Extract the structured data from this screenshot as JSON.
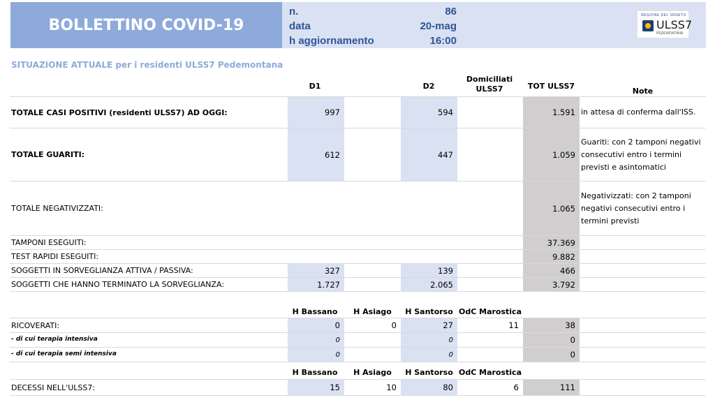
{
  "header": {
    "title": "BOLLETTINO COVID-19",
    "meta": [
      {
        "label": "n.",
        "value": "86"
      },
      {
        "label": "data",
        "value": "20-mag"
      },
      {
        "label": "h aggiornamento",
        "value": "16:00"
      }
    ],
    "logo": {
      "top": "REGIONE DEL VENETO",
      "name": "ULSS7",
      "sub": "PEDEMONTANA"
    }
  },
  "section_title": "SITUAZIONE ATTUALE per i residenti ULSS7 Pedemontana",
  "columns": {
    "d1": "D1",
    "d2": "D2",
    "dom1": "Domiciliati",
    "dom2": "ULSS7",
    "tot": "TOT ULSS7",
    "note": "Note"
  },
  "rows": {
    "positivi": {
      "label": "TOTALE CASI POSITIVI (residenti ULSS7) AD OGGI:",
      "d1": "997",
      "d2": "594",
      "tot": "1.591",
      "note": "in attesa di conferma dall'ISS."
    },
    "guariti": {
      "label": "TOTALE GUARITI:",
      "d1": "612",
      "d2": "447",
      "tot": "1.059",
      "note": "Guariti: con 2 tamponi negativi consecutivi entro i termini previsti e asintomatici"
    },
    "negativizzati": {
      "label": "TOTALE NEGATIVIZZATI:",
      "tot": "1.065",
      "note": "Negativizzati: con 2 tamponi negativi consecutivi entro i termini previsti"
    },
    "tamponi": {
      "label": "TAMPONI ESEGUITI:",
      "tot": "37.369"
    },
    "test_rapidi": {
      "label": "TEST RAPIDI ESEGUITI:",
      "tot": "9.882"
    },
    "sorveglianza": {
      "label": "SOGGETTI IN SORVEGLIANZA ATTIVA / PASSIVA:",
      "d1": "327",
      "d2": "139",
      "tot": "466"
    },
    "terminato": {
      "label": "SOGGETTI CHE HANNO TERMINATO LA SORVEGLIANZA:",
      "d1": "1.727",
      "d2": "2.065",
      "tot": "3.792"
    }
  },
  "hospitals": {
    "h1": "H Bassano",
    "h2": "H Asiago",
    "h3": "H Santorso",
    "h4": "OdC Marostica"
  },
  "hospital_rows": {
    "ricoverati": {
      "label": "RICOVERATI:",
      "h1": "0",
      "h2": "0",
      "h3": "27",
      "h4": "11",
      "tot": "38"
    },
    "intensiva": {
      "label": "- di cui terapia intensiva",
      "h1": "0",
      "h3": "0",
      "tot": "0"
    },
    "semi_intensiva": {
      "label": "- di cui terapia semi intensiva",
      "h1": "0",
      "h3": "0",
      "tot": "0"
    },
    "decessi": {
      "label": "DECESSI NELL'ULSS7:",
      "h1": "15",
      "h2": "10",
      "h3": "80",
      "h4": "6",
      "tot": "111"
    }
  }
}
